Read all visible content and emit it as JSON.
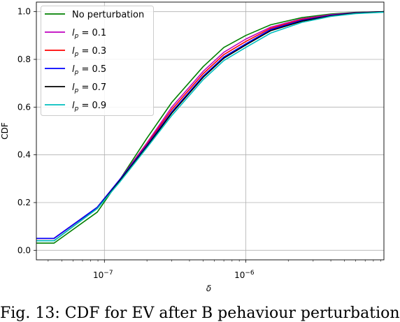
{
  "chart_data": {
    "type": "line",
    "xscale": "log",
    "xlabel": "δ",
    "ylabel": "CDF",
    "xlim": [
      3.3e-08,
      9.5e-06
    ],
    "ylim": [
      -0.04,
      1.04
    ],
    "grid": true,
    "legend_position": "top-left",
    "x_ticks": [
      {
        "value": 1e-07,
        "base": "10",
        "exp": "−7"
      },
      {
        "value": 1e-06,
        "base": "10",
        "exp": "−6"
      }
    ],
    "y_ticks": [
      {
        "value": 0.0,
        "label": "0.0"
      },
      {
        "value": 0.2,
        "label": "0.2"
      },
      {
        "value": 0.4,
        "label": "0.4"
      },
      {
        "value": 0.6,
        "label": "0.6"
      },
      {
        "value": 0.8,
        "label": "0.8"
      },
      {
        "value": 1.0,
        "label": "1.0"
      }
    ],
    "series": [
      {
        "name": "No perturbation",
        "color": "#008000",
        "x": [
          3.3e-08,
          4.4e-08,
          8.9e-08,
          1.3e-07,
          2e-07,
          3e-07,
          5e-07,
          7e-07,
          1e-06,
          1.5e-06,
          2.5e-06,
          4e-06,
          6e-06,
          9.5e-06
        ],
        "y": [
          0.03,
          0.03,
          0.16,
          0.3,
          0.47,
          0.62,
          0.77,
          0.85,
          0.9,
          0.945,
          0.975,
          0.99,
          0.997,
          1.0
        ]
      },
      {
        "name": "l_p = 0.1",
        "color": "#bf00bf",
        "x": [
          3.3e-08,
          4.4e-08,
          8.9e-08,
          1.3e-07,
          2e-07,
          3e-07,
          5e-07,
          7e-07,
          1e-06,
          1.5e-06,
          2.5e-06,
          4e-06,
          6e-06,
          9.5e-06
        ],
        "y": [
          0.05,
          0.05,
          0.18,
          0.3,
          0.45,
          0.6,
          0.75,
          0.83,
          0.885,
          0.935,
          0.97,
          0.987,
          0.996,
          1.0
        ]
      },
      {
        "name": "l_p = 0.3",
        "color": "#ff0000",
        "x": [
          3.3e-08,
          4.4e-08,
          8.9e-08,
          1.3e-07,
          2e-07,
          3e-07,
          5e-07,
          7e-07,
          1e-06,
          1.5e-06,
          2.5e-06,
          4e-06,
          6e-06,
          9.5e-06
        ],
        "y": [
          0.05,
          0.05,
          0.18,
          0.3,
          0.445,
          0.59,
          0.74,
          0.82,
          0.875,
          0.93,
          0.967,
          0.985,
          0.995,
          1.0
        ]
      },
      {
        "name": "l_p = 0.5",
        "color": "#0000ff",
        "x": [
          3.3e-08,
          4.4e-08,
          8.9e-08,
          1.3e-07,
          2e-07,
          3e-07,
          5e-07,
          7e-07,
          1e-06,
          1.5e-06,
          2.5e-06,
          4e-06,
          6e-06,
          9.5e-06
        ],
        "y": [
          0.05,
          0.05,
          0.18,
          0.3,
          0.44,
          0.58,
          0.73,
          0.81,
          0.865,
          0.925,
          0.964,
          0.984,
          0.995,
          1.0
        ]
      },
      {
        "name": "l_p = 0.7",
        "color": "#000000",
        "x": [
          3.3e-08,
          4.4e-08,
          8.9e-08,
          1.3e-07,
          2e-07,
          3e-07,
          5e-07,
          7e-07,
          1e-06,
          1.5e-06,
          2.5e-06,
          4e-06,
          6e-06,
          9.5e-06
        ],
        "y": [
          0.04,
          0.04,
          0.175,
          0.295,
          0.435,
          0.575,
          0.725,
          0.805,
          0.86,
          0.92,
          0.96,
          0.982,
          0.994,
          1.0
        ]
      },
      {
        "name": "l_p = 0.9",
        "color": "#00bfbf",
        "x": [
          3.3e-08,
          4.4e-08,
          8.9e-08,
          1.3e-07,
          2e-07,
          3e-07,
          5e-07,
          7e-07,
          1e-06,
          1.5e-06,
          2.5e-06,
          4e-06,
          6e-06,
          9.5e-06
        ],
        "y": [
          0.04,
          0.04,
          0.175,
          0.29,
          0.43,
          0.565,
          0.715,
          0.795,
          0.85,
          0.91,
          0.955,
          0.98,
          0.992,
          0.998
        ]
      }
    ],
    "legend_entries": [
      {
        "type": "text",
        "text": "No perturbation"
      },
      {
        "type": "math",
        "sym": "l",
        "sub": "p",
        "rest": " = 0.1"
      },
      {
        "type": "math",
        "sym": "l",
        "sub": "p",
        "rest": " = 0.3"
      },
      {
        "type": "math",
        "sym": "l",
        "sub": "p",
        "rest": " = 0.5"
      },
      {
        "type": "math",
        "sym": "l",
        "sub": "p",
        "rest": " = 0.7"
      },
      {
        "type": "math",
        "sym": "l",
        "sub": "p",
        "rest": " = 0.9"
      }
    ]
  },
  "caption": "Fig. 13: CDF for EV after B pehaviour perturbation"
}
